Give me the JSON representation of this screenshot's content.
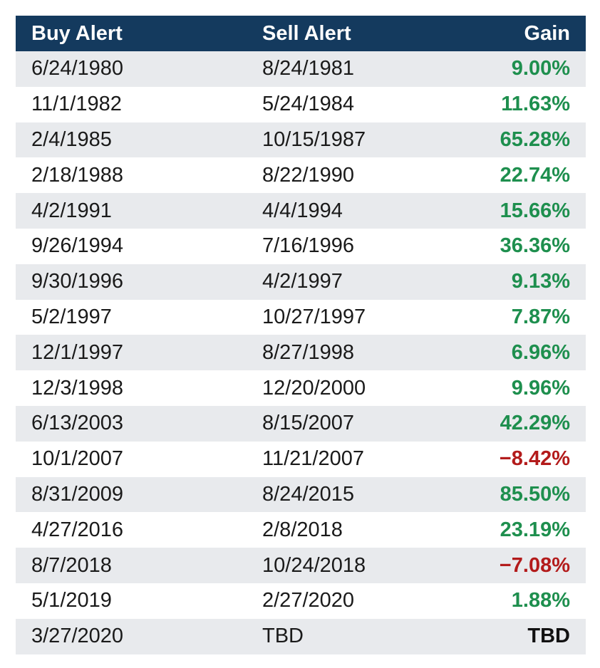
{
  "header": {
    "buy": "Buy Alert",
    "sell": "Sell Alert",
    "gain": "Gain"
  },
  "colors": {
    "header_bg": "#143a5e",
    "positive": "#1e8f4e",
    "negative": "#b31b1b",
    "stripe": "#e8eaed"
  },
  "rows": [
    {
      "buy": "6/24/1980",
      "sell": "8/24/1981",
      "gain": "9.00%",
      "sign": "pos"
    },
    {
      "buy": "11/1/1982",
      "sell": "5/24/1984",
      "gain": "11.63%",
      "sign": "pos"
    },
    {
      "buy": "2/4/1985",
      "sell": "10/15/1987",
      "gain": "65.28%",
      "sign": "pos"
    },
    {
      "buy": "2/18/1988",
      "sell": "8/22/1990",
      "gain": "22.74%",
      "sign": "pos"
    },
    {
      "buy": "4/2/1991",
      "sell": "4/4/1994",
      "gain": "15.66%",
      "sign": "pos"
    },
    {
      "buy": "9/26/1994",
      "sell": "7/16/1996",
      "gain": "36.36%",
      "sign": "pos"
    },
    {
      "buy": "9/30/1996",
      "sell": "4/2/1997",
      "gain": "9.13%",
      "sign": "pos"
    },
    {
      "buy": "5/2/1997",
      "sell": "10/27/1997",
      "gain": "7.87%",
      "sign": "pos"
    },
    {
      "buy": "12/1/1997",
      "sell": "8/27/1998",
      "gain": "6.96%",
      "sign": "pos"
    },
    {
      "buy": "12/3/1998",
      "sell": "12/20/2000",
      "gain": "9.96%",
      "sign": "pos"
    },
    {
      "buy": "6/13/2003",
      "sell": "8/15/2007",
      "gain": "42.29%",
      "sign": "pos"
    },
    {
      "buy": "10/1/2007",
      "sell": "11/21/2007",
      "gain": "−8.42%",
      "sign": "neg"
    },
    {
      "buy": "8/31/2009",
      "sell": "8/24/2015",
      "gain": "85.50%",
      "sign": "pos"
    },
    {
      "buy": "4/27/2016",
      "sell": "2/8/2018",
      "gain": "23.19%",
      "sign": "pos"
    },
    {
      "buy": "8/7/2018",
      "sell": "10/24/2018",
      "gain": "−7.08%",
      "sign": "neg"
    },
    {
      "buy": "5/1/2019",
      "sell": "2/27/2020",
      "gain": "1.88%",
      "sign": "pos"
    },
    {
      "buy": "3/27/2020",
      "sell": "TBD",
      "gain": "TBD",
      "sign": "tbd"
    }
  ]
}
